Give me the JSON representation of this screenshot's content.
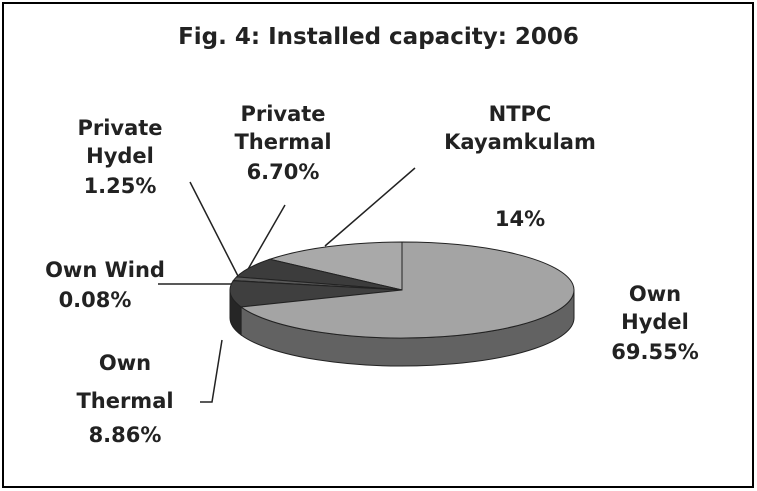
{
  "chart_data": {
    "type": "pie",
    "title": "Fig. 4: Installed capacity: 2006",
    "categories": [
      "NTPC Kayamkulam",
      "Private Thermal",
      "Private Hydel",
      "Own Wind",
      "Own Thermal",
      "Own Hydel"
    ],
    "values": [
      14,
      6.7,
      1.25,
      0.08,
      8.86,
      69.55
    ],
    "value_labels": [
      "14%",
      "6.70%",
      "1.25%",
      "0.08%",
      "8.86%",
      "69.55%"
    ],
    "colors": [
      "#a9a9a9",
      "#3c3c3c",
      "#5a5a5a",
      "#2a2a2a",
      "#3f3f3f",
      "#a4a4a4"
    ]
  }
}
